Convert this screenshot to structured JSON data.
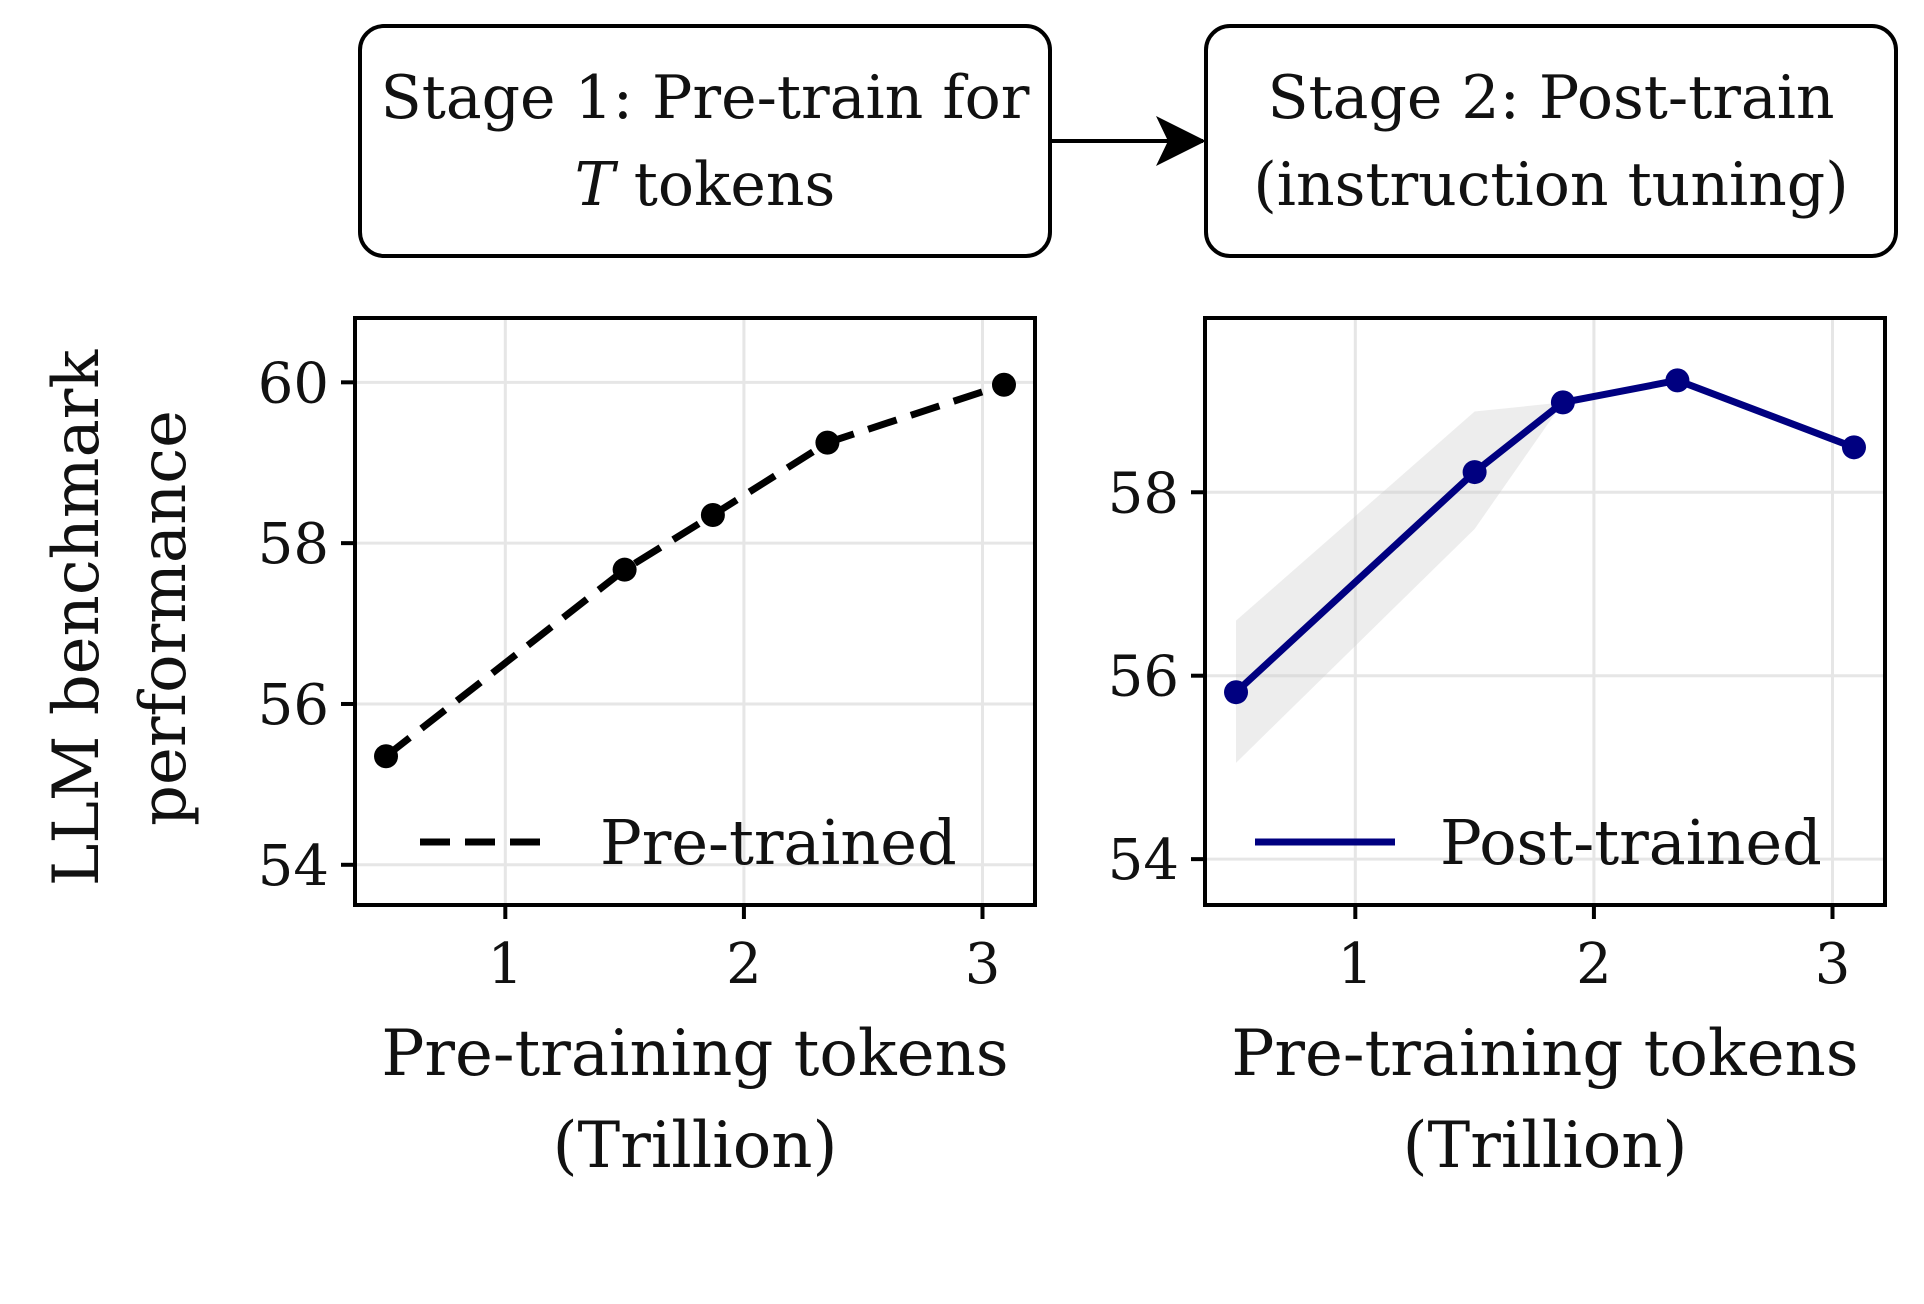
{
  "stages": [
    {
      "line1": "Stage 1: Pre-train for",
      "line2_italic": "T",
      "line2_rest": " tokens"
    },
    {
      "line1": "Stage 2: Post-train",
      "line2": "(instruction tuning)"
    }
  ],
  "shared_ylabel": [
    "LLM benchmark",
    "performance"
  ],
  "colors": {
    "pretrained": "#000000",
    "posttrained": "#000080",
    "band": "#cccccc",
    "grid": "#e6e6e6"
  },
  "chart_data": [
    {
      "type": "line",
      "xlabel": [
        "Pre-training tokens",
        "(Trillion)"
      ],
      "xlim": [
        0.37,
        3.22
      ],
      "ylim": [
        53.5,
        60.8
      ],
      "xticks": [
        1,
        2,
        3
      ],
      "yticks": [
        54,
        56,
        58,
        60
      ],
      "grid": true,
      "legend_position": "lower-right",
      "series": [
        {
          "name": "Pre-trained",
          "style": "dashed",
          "x": [
            0.5,
            1.5,
            1.87,
            2.35,
            3.09
          ],
          "y": [
            55.35,
            57.67,
            58.35,
            59.25,
            59.97
          ]
        }
      ]
    },
    {
      "type": "line",
      "xlabel": [
        "Pre-training tokens",
        "(Trillion)"
      ],
      "xlim": [
        0.37,
        3.22
      ],
      "ylim": [
        53.5,
        59.9
      ],
      "xticks": [
        1,
        2,
        3
      ],
      "yticks": [
        54,
        56,
        58
      ],
      "grid": true,
      "legend_position": "lower-right",
      "series": [
        {
          "name": "Post-trained",
          "style": "solid",
          "x": [
            0.5,
            1.5,
            1.87,
            2.35,
            3.09
          ],
          "y": [
            55.82,
            58.22,
            58.98,
            59.22,
            58.49
          ],
          "band_low": [
            55.05,
            57.6,
            58.98,
            59.22,
            58.49
          ],
          "band_high": [
            56.6,
            58.88,
            58.98,
            59.22,
            58.49
          ]
        }
      ]
    }
  ]
}
